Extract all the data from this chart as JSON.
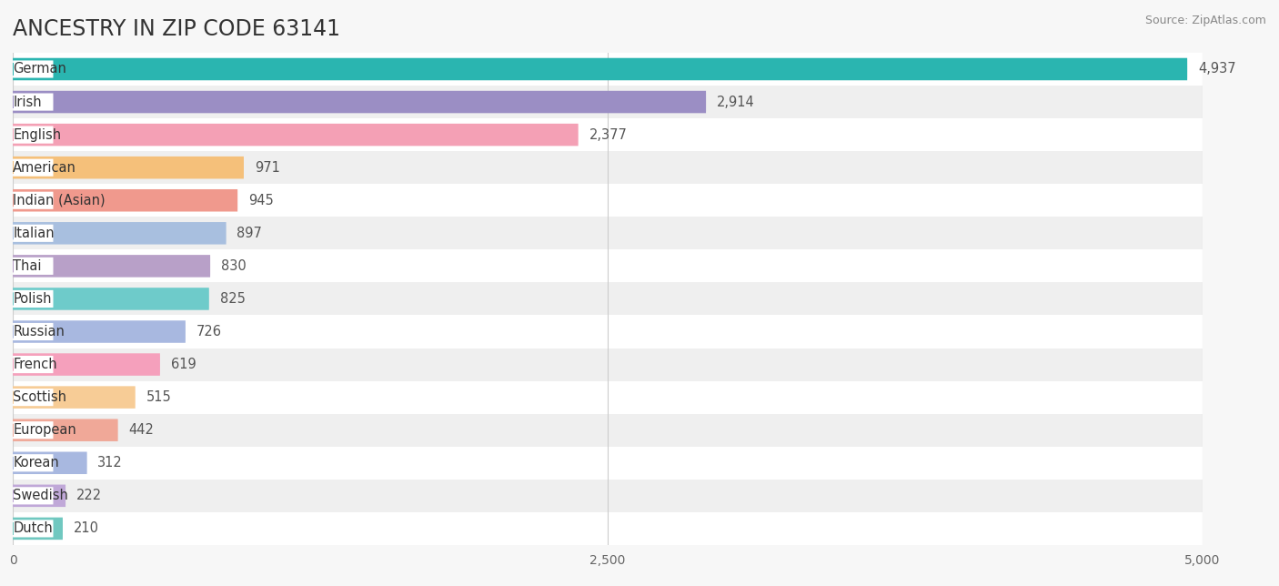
{
  "title": "ANCESTRY IN ZIP CODE 63141",
  "source": "Source: ZipAtlas.com",
  "categories": [
    "German",
    "Irish",
    "English",
    "American",
    "Indian (Asian)",
    "Italian",
    "Thai",
    "Polish",
    "Russian",
    "French",
    "Scottish",
    "European",
    "Korean",
    "Swedish",
    "Dutch"
  ],
  "values": [
    4937,
    2914,
    2377,
    971,
    945,
    897,
    830,
    825,
    726,
    619,
    515,
    442,
    312,
    222,
    210
  ],
  "colors": [
    "#2ab5b0",
    "#9b8ec4",
    "#f4a0b5",
    "#f5c07a",
    "#f0998d",
    "#a8bfdf",
    "#b8a0c8",
    "#6ecbca",
    "#a8b8e0",
    "#f5a0bc",
    "#f7cc96",
    "#f0a898",
    "#a8b8e0",
    "#c0a8d8",
    "#70c8c0"
  ],
  "xlim": [
    0,
    5000
  ],
  "xticks": [
    0,
    2500,
    5000
  ],
  "xticklabels": [
    "0",
    "2,500",
    "5,000"
  ],
  "bar_height": 0.68,
  "background_color": "#f7f7f7",
  "row_bg_colors": [
    "#ffffff",
    "#efefef"
  ],
  "title_fontsize": 17,
  "label_fontsize": 10.5,
  "value_fontsize": 10.5,
  "tick_fontsize": 10
}
